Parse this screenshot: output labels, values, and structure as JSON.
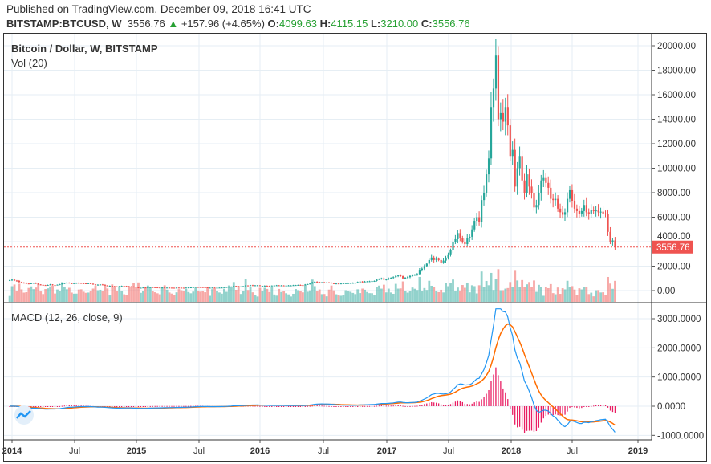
{
  "header": {
    "published": "Published on TradingView.com, December 09, 2018 16:41 UTC",
    "symbol": "BITSTAMP:BTCUSD, W",
    "last": "3556.76",
    "change": "+157.96 (+4.65%)",
    "o_label": "O:",
    "o": "4099.63",
    "h_label": "H:",
    "h": "4115.15",
    "l_label": "L:",
    "l": "3210.00",
    "c_label": "C:",
    "c": "3556.76"
  },
  "price_pane": {
    "title": "Bitcoin / Dollar, W, BITSTAMP",
    "volume_label": "Vol (20)",
    "last_price_tag": "3556.76"
  },
  "macd_pane": {
    "title": "MACD (12, 26, close, 9)",
    "fast": 12,
    "slow": 26,
    "signal": 9
  },
  "colors": {
    "up": "#26a69a",
    "down": "#ef5350",
    "macd": "#2196f3",
    "signal": "#ff6d00",
    "histogram": "#e91e63",
    "header_green": "#26a032"
  },
  "chart_data": [
    {
      "type": "candlestick",
      "title": "Bitcoin / Dollar, W, BITSTAMP",
      "interval": "weekly",
      "start": "2014-01",
      "ylim": [
        0,
        20000
      ],
      "yticks": [
        "0.00",
        "2000.00",
        "4000.00",
        "6000.00",
        "8000.00",
        "10000.00",
        "12000.00",
        "14000.00",
        "16000.00",
        "18000.00",
        "20000.00"
      ],
      "xticks": [
        "2014",
        "Jul",
        "2015",
        "Jul",
        "2016",
        "Jul",
        "2017",
        "Jul",
        "2018",
        "Jul",
        "2019"
      ],
      "close": [
        850,
        900,
        820,
        800,
        700,
        650,
        620,
        580,
        560,
        600,
        630,
        580,
        500,
        470,
        450,
        440,
        460,
        500,
        450,
        440,
        480,
        520,
        580,
        620,
        650,
        600,
        580,
        600,
        630,
        620,
        600,
        590,
        580,
        600,
        560,
        500,
        470,
        480,
        500,
        480,
        420,
        380,
        390,
        360,
        340,
        330,
        360,
        380,
        370,
        360,
        340,
        320,
        280,
        260,
        220,
        230,
        250,
        240,
        260,
        280,
        270,
        260,
        250,
        240,
        250,
        230,
        240,
        235,
        230,
        225,
        240,
        235,
        230,
        225,
        240,
        250,
        260,
        280,
        290,
        285,
        280,
        270,
        260,
        230,
        235,
        240,
        230,
        235,
        240,
        245,
        270,
        290,
        310,
        330,
        380,
        360,
        320,
        330,
        360,
        420,
        410,
        440,
        430,
        430,
        430,
        380,
        380,
        400,
        380,
        370,
        410,
        420,
        430,
        420,
        420,
        410,
        415,
        420,
        420,
        440,
        450,
        460,
        450,
        440,
        500,
        530,
        580,
        670,
        720,
        700,
        660,
        670,
        650,
        660,
        650,
        600,
        580,
        580,
        575,
        580,
        600,
        605,
        610,
        620,
        630,
        640,
        700,
        740,
        720,
        740,
        750,
        760,
        780,
        790,
        900,
        960,
        1000,
        900,
        920,
        1000,
        1050,
        1100,
        1200,
        1250,
        1180,
        1000,
        1050,
        1100,
        1200,
        1250,
        1300,
        1350,
        1700,
        1800,
        2000,
        2200,
        2500,
        2700,
        2500,
        2600,
        2500,
        2300,
        2450,
        2700,
        2900,
        3300,
        4000,
        4200,
        4700,
        4300,
        4000,
        3800,
        4300,
        4400,
        5000,
        5700,
        6000,
        5600,
        7400,
        8000,
        9500,
        10800,
        15000,
        16500,
        19200,
        14000,
        14500,
        13800,
        15000,
        13500,
        11000,
        11500,
        8500,
        10000,
        11000,
        9000,
        8000,
        9500,
        8500,
        8000,
        6800,
        7000,
        8000,
        9000,
        9200,
        8800,
        8400,
        7500,
        7400,
        7500,
        6700,
        6400,
        6200,
        6400,
        7500,
        8200,
        7300,
        6700,
        6500,
        6300,
        6500,
        7000,
        6400,
        6300,
        6600,
        6500,
        6550,
        6400,
        6450,
        6300,
        6250,
        4800,
        4000,
        4100,
        3556.76
      ]
    },
    {
      "type": "line",
      "title": "MACD (12, 26, close, 9)",
      "ylim": [
        -1000,
        3000
      ],
      "yticks": [
        "-1000.0000",
        "0.0000",
        "1000.0000",
        "2000.0000",
        "3000.0000"
      ],
      "series": [
        "MACD",
        "Signal",
        "Histogram"
      ]
    }
  ]
}
